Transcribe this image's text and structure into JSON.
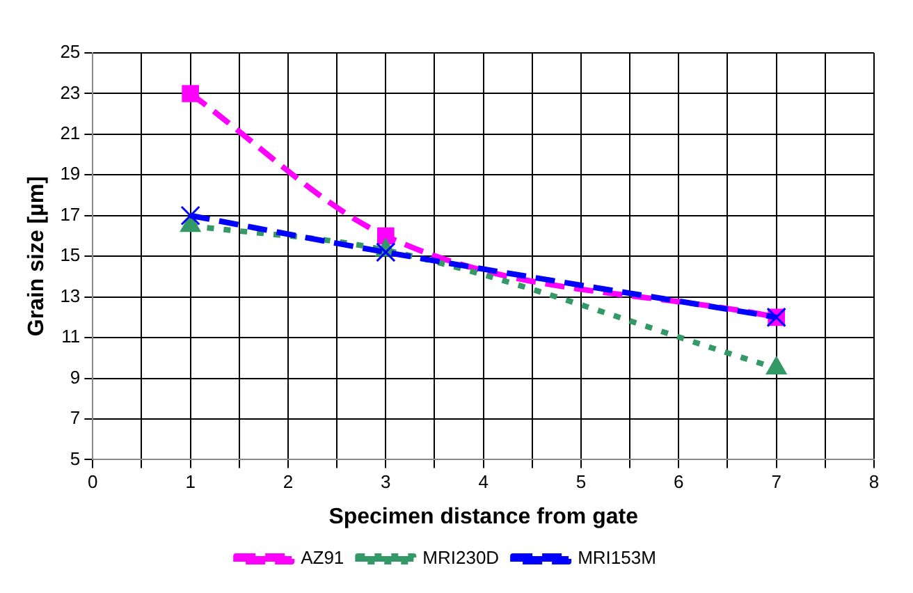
{
  "chart_data": {
    "type": "line",
    "xlabel": "Specimen distance from gate",
    "ylabel": "Grain size [µm]",
    "x": [
      1,
      3,
      7
    ],
    "series": [
      {
        "name": "AZ91",
        "color": "#ff00ff",
        "values": [
          23,
          16,
          12
        ],
        "marker": "square",
        "line_style": "dashed"
      },
      {
        "name": "MRI230D",
        "color": "#339966",
        "values": [
          16.5,
          15.3,
          9.5
        ],
        "marker": "triangle",
        "line_style": "dotted"
      },
      {
        "name": "MRI153M",
        "color": "#0000ff",
        "values": [
          17,
          15.2,
          12
        ],
        "marker": "cross",
        "line_style": "dashed"
      }
    ],
    "xlim": [
      0,
      8
    ],
    "xticks": [
      0,
      {
        "value": 0.5,
        "label": null
      },
      1,
      {
        "value": 1.5,
        "label": null
      },
      2,
      {
        "value": 2.5,
        "label": null
      },
      3,
      {
        "value": 3.5,
        "label": null
      },
      4,
      {
        "value": 4.5,
        "label": null
      },
      5,
      {
        "value": 5.5,
        "label": null
      },
      6,
      {
        "value": 6.5,
        "label": null
      },
      7,
      {
        "value": 7.5,
        "label": null
      },
      8
    ],
    "ylim": [
      5,
      25
    ],
    "yticks": [
      5,
      7,
      9,
      11,
      13,
      15,
      17,
      19,
      21,
      23,
      25
    ],
    "grid": true,
    "legend": "bottom"
  }
}
